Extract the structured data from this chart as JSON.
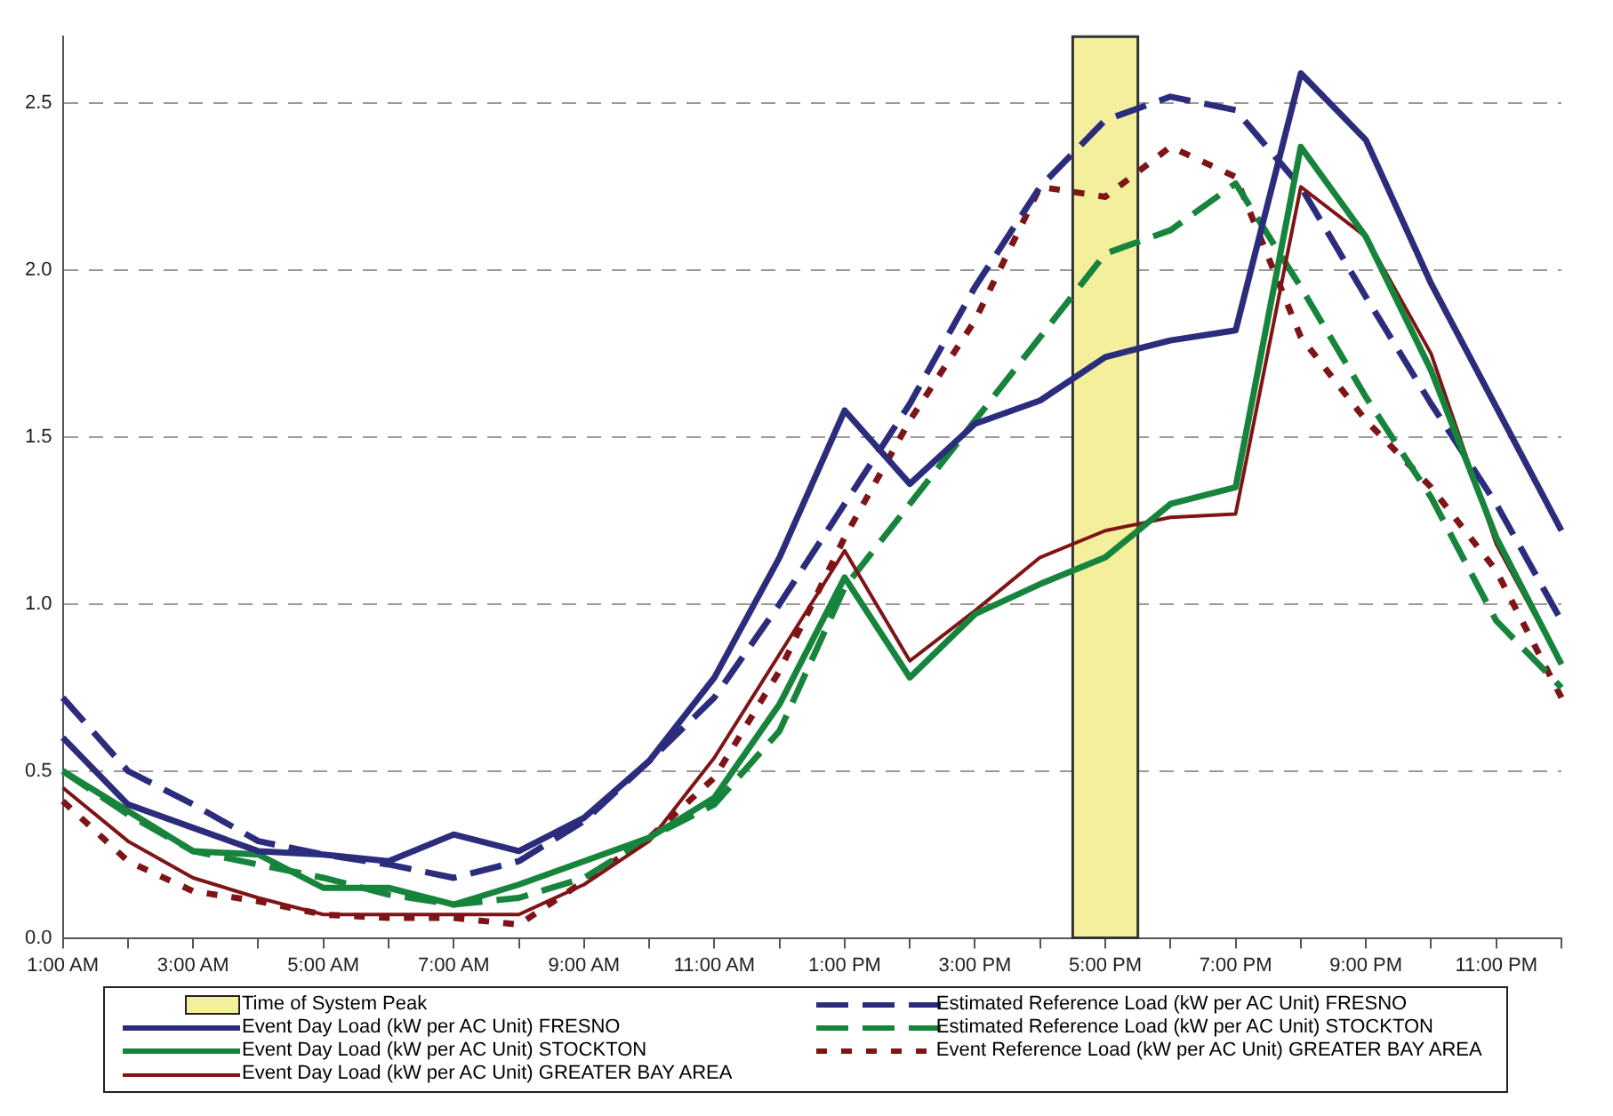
{
  "chart_data": {
    "type": "line",
    "categories": [
      "1:00 AM",
      null,
      "3:00 AM",
      null,
      "5:00 AM",
      null,
      "7:00 AM",
      null,
      "9:00 AM",
      null,
      "11:00 AM",
      null,
      "1:00 PM",
      null,
      "3:00 PM",
      null,
      "5:00 PM",
      null,
      "7:00 PM",
      null,
      "9:00 PM",
      null,
      "11:00 PM",
      null
    ],
    "series": [
      {
        "name": "Event Day Load (kW per AC Unit) FRESNO",
        "color": "#2b2d7c",
        "line_style": "solid",
        "values": [
          0.6,
          0.4,
          0.33,
          0.26,
          0.25,
          0.23,
          0.31,
          0.26,
          0.36,
          0.53,
          0.78,
          1.14,
          1.58,
          1.36,
          1.54,
          1.61,
          1.74,
          1.79,
          1.82,
          2.59,
          2.39,
          1.96,
          1.59,
          1.22
        ]
      },
      {
        "name": "Event Day Load (kW per AC Unit) STOCKTON",
        "color": "#17843c",
        "line_style": "solid",
        "values": [
          0.5,
          0.38,
          0.26,
          0.25,
          0.15,
          0.15,
          0.1,
          0.16,
          0.23,
          0.3,
          0.42,
          0.7,
          1.08,
          0.78,
          0.97,
          1.06,
          1.14,
          1.3,
          1.35,
          2.37,
          2.1,
          1.7,
          1.2,
          0.82
        ]
      },
      {
        "name": "Event Day Load (kW per AC Unit) GREATER BAY AREA",
        "color": "#7f1416",
        "line_style": "solid",
        "values": [
          0.45,
          0.29,
          0.18,
          0.12,
          0.07,
          0.07,
          0.07,
          0.07,
          0.16,
          0.29,
          0.54,
          0.85,
          1.16,
          0.83,
          0.98,
          1.14,
          1.22,
          1.26,
          1.27,
          2.25,
          2.1,
          1.75,
          1.18,
          0.82
        ]
      },
      {
        "name": "Estimated Reference Load (kW per AC Unit) FRESNO",
        "color": "#2b2d7c",
        "line_style": "dashed",
        "values": [
          0.72,
          0.5,
          0.4,
          0.29,
          0.25,
          0.22,
          0.18,
          0.23,
          0.35,
          0.53,
          0.72,
          1.0,
          1.3,
          1.6,
          1.95,
          2.25,
          2.45,
          2.52,
          2.48,
          2.25,
          1.92,
          1.6,
          1.3,
          0.95
        ]
      },
      {
        "name": "Estimated Reference Load (kW per AC Unit) STOCKTON",
        "color": "#17843c",
        "line_style": "dashed",
        "values": [
          0.5,
          0.37,
          0.26,
          0.22,
          0.18,
          0.13,
          0.1,
          0.12,
          0.18,
          0.3,
          0.4,
          0.62,
          1.05,
          1.3,
          1.55,
          1.8,
          2.05,
          2.12,
          2.26,
          1.95,
          1.62,
          1.32,
          0.95,
          0.75
        ]
      },
      {
        "name": "Event Reference Load (kW per AC Unit) GREATER BAY AREA",
        "color": "#7f1416",
        "line_style": "dotted",
        "values": [
          0.41,
          0.23,
          0.14,
          0.11,
          0.07,
          0.06,
          0.06,
          0.04,
          0.17,
          0.3,
          0.48,
          0.8,
          1.2,
          1.55,
          1.85,
          2.25,
          2.22,
          2.37,
          2.28,
          1.8,
          1.55,
          1.35,
          1.1,
          0.72
        ]
      }
    ],
    "bands": [
      {
        "axis": "x",
        "from": "5:00 PM",
        "to": "5:00 PM",
        "label": "Time of System Peak",
        "color": "#f3ef9c"
      }
    ],
    "ylim": [
      0,
      2.7
    ],
    "yticks": [
      {
        "value": 0,
        "label": "0.0"
      },
      {
        "value": 0.5,
        "label": "0.5"
      },
      {
        "value": 1,
        "label": "1.0"
      },
      {
        "value": 1.5,
        "label": "1.5"
      },
      {
        "value": 2,
        "label": "2.0"
      },
      {
        "value": 2.5,
        "label": "2.5"
      }
    ],
    "grid": "y",
    "legend": "bottom",
    "marker": "none"
  }
}
